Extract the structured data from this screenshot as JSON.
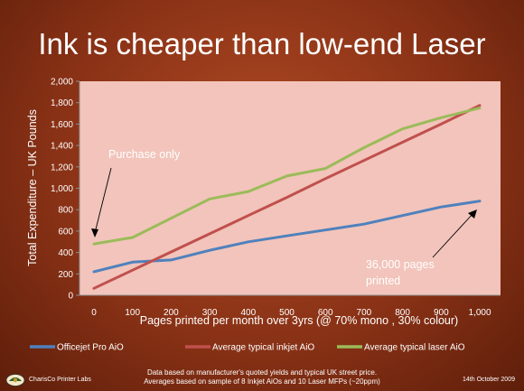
{
  "page": {
    "title": "Ink is cheaper than low-end Laser",
    "footer_note_line1": "Data based on manufacturer's quoted yields and typical UK street price.",
    "footer_note_line2": "Averages based on sample of 8 Inkjet AiOs and 10 Laser MFPs (~20ppm)",
    "footer_org": "CharisCo Printer Labs",
    "footer_date": "14th October 2009"
  },
  "chart_data": {
    "type": "line",
    "title": "Ink is cheaper than low-end Laser",
    "xlabel": "Pages printed per month over 3yrs (@ 70% mono , 30% colour)",
    "ylabel": "Total Expenditure – UK Pounds",
    "x": [
      0,
      100,
      200,
      300,
      400,
      500,
      600,
      700,
      800,
      900,
      1000
    ],
    "x_tick_labels": [
      "0",
      "100",
      "200",
      "300",
      "400",
      "500",
      "600",
      "700",
      "800",
      "900",
      "1,000"
    ],
    "ylim": [
      0,
      2000
    ],
    "y_ticks": [
      0,
      200,
      400,
      600,
      800,
      1000,
      1200,
      1400,
      1600,
      1800,
      2000
    ],
    "y_tick_labels": [
      "0",
      "200",
      "400",
      "600",
      "800",
      "1,000",
      "1,200",
      "1,400",
      "1,600",
      "1,800",
      "2,000"
    ],
    "grid": false,
    "legend_position": "bottom",
    "plot_background": "#f2c4bb",
    "series": [
      {
        "name": "Officejet Pro AiO",
        "color": "#4f81bd",
        "values": [
          220,
          310,
          330,
          420,
          500,
          555,
          610,
          665,
          745,
          825,
          880
        ]
      },
      {
        "name": "Average typical inkjet AiO",
        "color": "#c0504d",
        "values": [
          65,
          235,
          405,
          575,
          745,
          915,
          1090,
          1260,
          1430,
          1600,
          1775
        ]
      },
      {
        "name": "Average typical laser AiO",
        "color": "#9bbb59",
        "values": [
          480,
          540,
          720,
          900,
          970,
          1115,
          1185,
          1380,
          1555,
          1660,
          1750
        ]
      }
    ],
    "annotations": [
      {
        "text": "Purchase only",
        "x": 0,
        "y": 480
      },
      {
        "text_line1": "36,000 pages",
        "text_line2": "printed",
        "x": 1000,
        "y": 880
      }
    ]
  }
}
